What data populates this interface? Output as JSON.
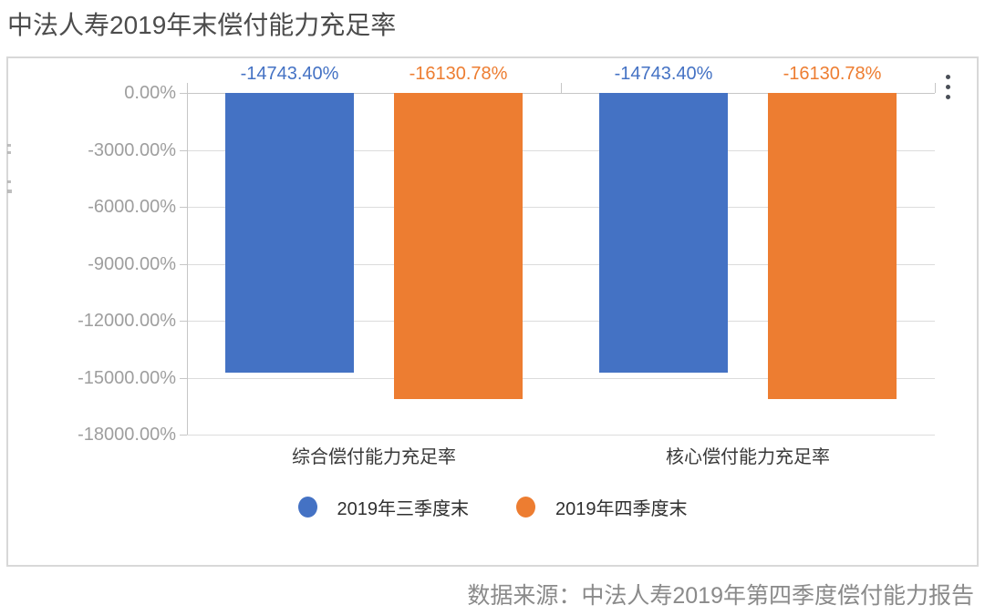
{
  "header": {
    "title": "中法人寿2019年末偿付能力充足率"
  },
  "footer": {
    "source": "数据来源：中法人寿2019年第四季度偿付能力报告"
  },
  "card": {
    "menu_icon": "kebab-menu"
  },
  "chart_data": {
    "type": "bar",
    "title": "中法人寿2019年末偿付能力充足率",
    "categories": [
      "综合偿付能力充足率",
      "核心偿付能力充足率"
    ],
    "series": [
      {
        "name": "2019年三季度末",
        "color": "#4472c4",
        "values": [
          -14743.4,
          -14743.4
        ],
        "labels": [
          "-14743.40%",
          "-14743.40%"
        ]
      },
      {
        "name": "2019年四季度末",
        "color": "#ed7d31",
        "values": [
          -16130.78,
          -16130.78
        ],
        "labels": [
          "-16130.78%",
          "-16130.78%"
        ]
      }
    ],
    "ylim": [
      -18000,
      0
    ],
    "yticks": [
      {
        "value": 0,
        "label": "0.00%"
      },
      {
        "value": -3000,
        "label": "-3000.00%"
      },
      {
        "value": -6000,
        "label": "-6000.00%"
      },
      {
        "value": -9000,
        "label": "-9000.00%"
      },
      {
        "value": -12000,
        "label": "-12000.00%"
      },
      {
        "value": -15000,
        "label": "-15000.00%"
      },
      {
        "value": -18000,
        "label": "-18000.00%"
      }
    ],
    "grid": true,
    "legend_position": "bottom",
    "xlabel": "",
    "ylabel": ""
  }
}
